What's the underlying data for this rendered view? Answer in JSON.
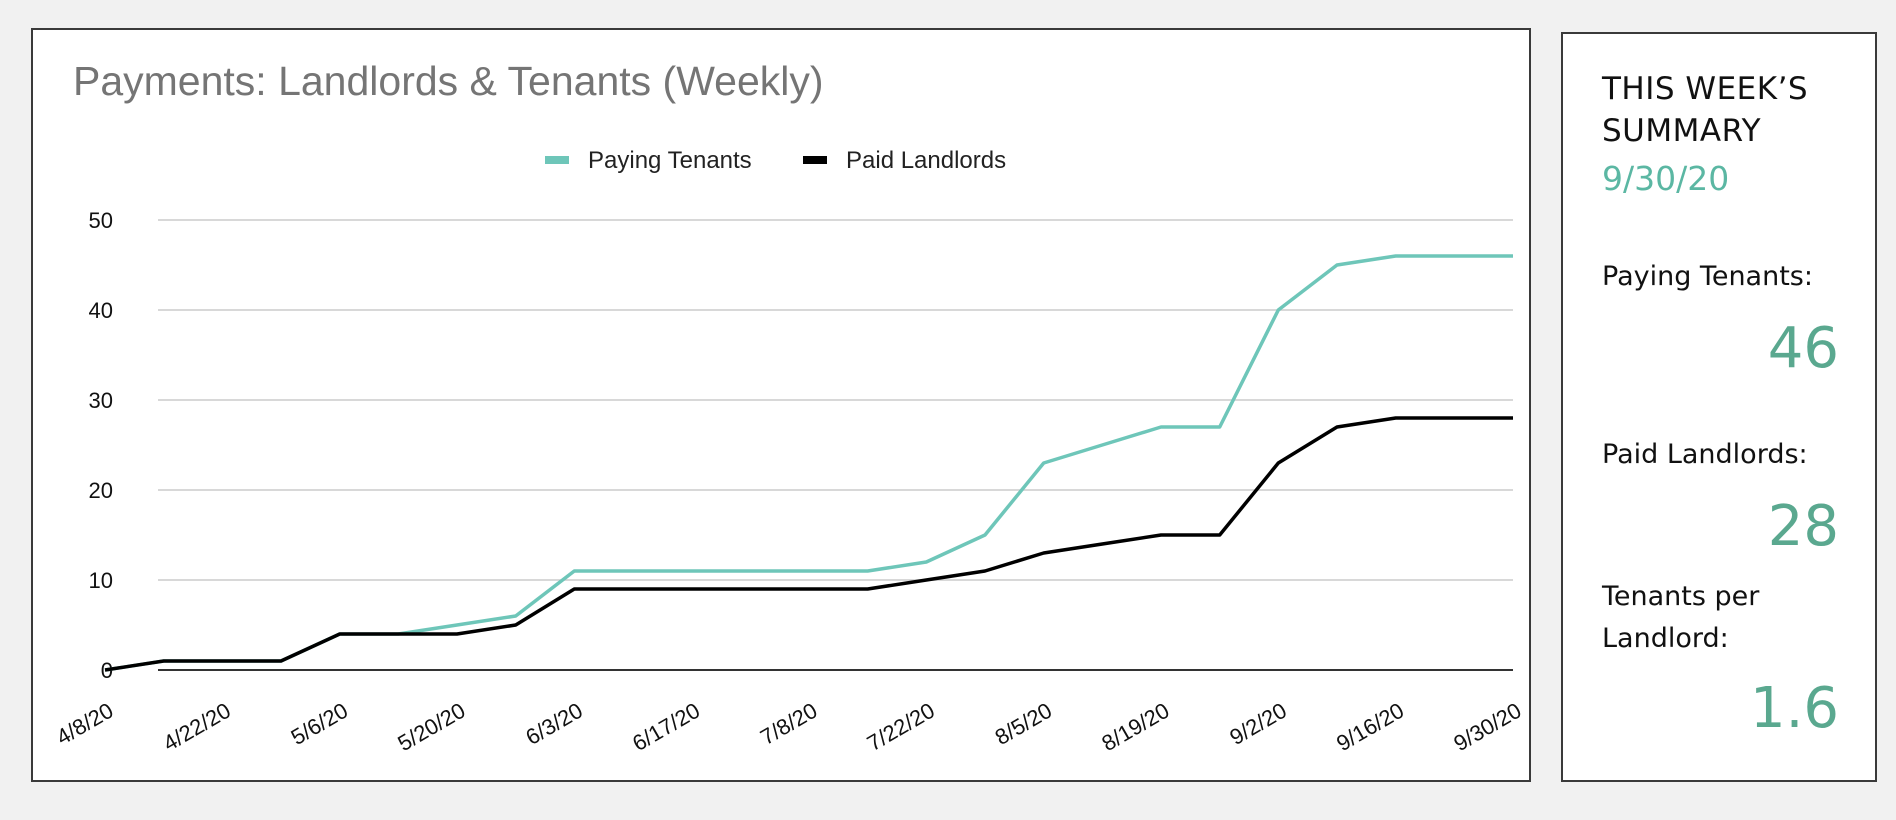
{
  "chart_data": {
    "type": "line",
    "title": "Payments: Landlords & Tenants (Weekly)",
    "x": [
      "4/8/20",
      "4/15/20",
      "4/22/20",
      "4/29/20",
      "5/6/20",
      "5/13/20",
      "5/20/20",
      "5/27/20",
      "6/3/20",
      "6/10/20",
      "6/17/20",
      "6/24/20",
      "7/8/20",
      "7/15/20",
      "7/22/20",
      "7/29/20",
      "8/5/20",
      "8/12/20",
      "8/19/20",
      "8/26/20",
      "9/2/20",
      "9/9/20",
      "9/16/20",
      "9/23/20",
      "9/30/20"
    ],
    "x_tick_labels": [
      "4/8/20",
      "4/22/20",
      "5/6/20",
      "5/20/20",
      "6/3/20",
      "6/17/20",
      "7/8/20",
      "7/22/20",
      "8/5/20",
      "8/19/20",
      "9/2/20",
      "9/16/20",
      "9/30/20"
    ],
    "series": [
      {
        "name": "Paying Tenants",
        "color": "#6ec6b9",
        "values": [
          0,
          1,
          1,
          1,
          4,
          4,
          5,
          6,
          11,
          11,
          11,
          11,
          11,
          11,
          12,
          15,
          23,
          25,
          27,
          27,
          40,
          45,
          46,
          46,
          46
        ]
      },
      {
        "name": "Paid Landlords",
        "color": "#000000",
        "values": [
          0,
          1,
          1,
          1,
          4,
          4,
          4,
          5,
          9,
          9,
          9,
          9,
          9,
          9,
          10,
          11,
          13,
          14,
          15,
          15,
          23,
          27,
          28,
          28,
          28
        ]
      }
    ],
    "ylim": [
      0,
      50
    ],
    "y_ticks": [
      0,
      10,
      20,
      30,
      40,
      50
    ],
    "grid": true,
    "legend_position": "top-center"
  },
  "summary": {
    "heading": "THIS WEEK’S SUMMARY",
    "date": "9/30/20",
    "tenants_label": "Paying Tenants:",
    "tenants_value": "46",
    "landlords_label": "Paid Landlords:",
    "landlords_value": "28",
    "ratio_label": "Tenants per Landlord:",
    "ratio_value": "1.6",
    "accent_color": "#5aa88f"
  }
}
